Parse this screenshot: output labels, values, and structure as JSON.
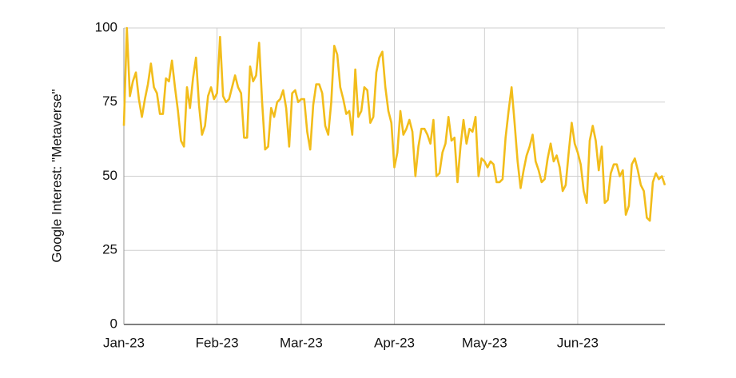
{
  "chart_data": {
    "type": "line",
    "ylabel": "Google Interest: \"Metaverse\"",
    "categories": [
      "Jan-23",
      null,
      null,
      null,
      null,
      null,
      null,
      null,
      null,
      null,
      null,
      null,
      null,
      null,
      null,
      null,
      null,
      null,
      null,
      null,
      null,
      null,
      null,
      null,
      null,
      null,
      null,
      null,
      null,
      null,
      null,
      "Feb-23",
      null,
      null,
      null,
      null,
      null,
      null,
      null,
      null,
      null,
      null,
      null,
      null,
      null,
      null,
      null,
      null,
      null,
      null,
      null,
      null,
      null,
      null,
      null,
      null,
      null,
      null,
      null,
      "Mar-23",
      null,
      null,
      null,
      null,
      null,
      null,
      null,
      null,
      null,
      null,
      null,
      null,
      null,
      null,
      null,
      null,
      null,
      null,
      null,
      null,
      null,
      null,
      null,
      null,
      null,
      null,
      null,
      null,
      null,
      null,
      "Apr-23",
      null,
      null,
      null,
      null,
      null,
      null,
      null,
      null,
      null,
      null,
      null,
      null,
      null,
      null,
      null,
      null,
      null,
      null,
      null,
      null,
      null,
      null,
      null,
      null,
      null,
      null,
      null,
      null,
      null,
      "May-23",
      null,
      null,
      null,
      null,
      null,
      null,
      null,
      null,
      null,
      null,
      null,
      null,
      null,
      null,
      null,
      null,
      null,
      null,
      null,
      null,
      null,
      null,
      null,
      null,
      null,
      null,
      null,
      null,
      null,
      null,
      "Jun-23",
      null,
      null,
      null,
      null,
      null,
      null,
      null,
      null,
      null,
      null,
      null,
      null,
      null,
      null,
      null,
      null,
      null,
      null,
      null,
      null,
      null,
      null,
      null,
      null,
      null,
      null,
      null,
      null,
      null
    ],
    "values": [
      67,
      100,
      77,
      82,
      85,
      76,
      70,
      76,
      81,
      88,
      80,
      78,
      71,
      71,
      83,
      82,
      89,
      80,
      72,
      62,
      60,
      80,
      73,
      83,
      90,
      74,
      64,
      67,
      77,
      80,
      76,
      78,
      97,
      77,
      75,
      76,
      80,
      84,
      80,
      78,
      63,
      63,
      87,
      82,
      84,
      95,
      75,
      59,
      60,
      73,
      70,
      75,
      76,
      79,
      73,
      60,
      78,
      79,
      75,
      76,
      76,
      65,
      59,
      74,
      81,
      81,
      78,
      67,
      64,
      75,
      94,
      91,
      80,
      76,
      71,
      72,
      64,
      86,
      70,
      72,
      80,
      79,
      68,
      70,
      85,
      90,
      92,
      80,
      72,
      68,
      53,
      58,
      72,
      64,
      66,
      69,
      65,
      50,
      60,
      66,
      66,
      64,
      61,
      69,
      50,
      51,
      58,
      61,
      70,
      62,
      63,
      48,
      60,
      69,
      61,
      66,
      65,
      70,
      50,
      56,
      55,
      53,
      55,
      54,
      48,
      48,
      49,
      63,
      72,
      80,
      68,
      55,
      46,
      52,
      57,
      60,
      64,
      55,
      52,
      48,
      49,
      56,
      61,
      55,
      57,
      53,
      45,
      47,
      58,
      68,
      61,
      58,
      54,
      45,
      41,
      62,
      67,
      62,
      52,
      60,
      41,
      42,
      51,
      54,
      54,
      50,
      52,
      37,
      40,
      54,
      56,
      52,
      47,
      45,
      36,
      35,
      48,
      51,
      49,
      50,
      47
    ],
    "color": "#f2bd1b",
    "ylim": [
      0,
      100
    ],
    "yticks": [
      0,
      25,
      50,
      75,
      100
    ],
    "grid": true
  }
}
